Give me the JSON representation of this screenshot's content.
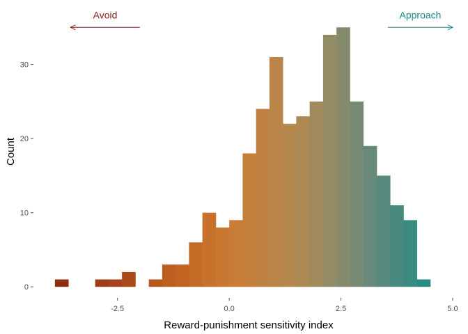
{
  "chart_data": {
    "type": "bar",
    "subtype": "histogram",
    "xlabel": "Reward-punishment sensitivity index",
    "ylabel": "Count",
    "xlim": [
      -4.35,
      5.0
    ],
    "ylim": [
      -1.2,
      37.0
    ],
    "x_ticks": [
      {
        "value": -2.5,
        "label": "-2.5"
      },
      {
        "value": 0.0,
        "label": "0.0"
      },
      {
        "value": 2.5,
        "label": "2.5"
      },
      {
        "value": 5.0,
        "label": "5.0"
      }
    ],
    "y_ticks": [
      {
        "value": 0,
        "label": "0"
      },
      {
        "value": 10,
        "label": "10"
      },
      {
        "value": 20,
        "label": "20"
      },
      {
        "value": 30,
        "label": "30"
      }
    ],
    "bin_width": 0.3,
    "bins": [
      {
        "start": -3.9,
        "count": 1
      },
      {
        "start": -3.0,
        "count": 1
      },
      {
        "start": -2.7,
        "count": 1
      },
      {
        "start": -2.4,
        "count": 2
      },
      {
        "start": -1.8,
        "count": 1
      },
      {
        "start": -1.5,
        "count": 3
      },
      {
        "start": -1.2,
        "count": 3
      },
      {
        "start": -0.9,
        "count": 6
      },
      {
        "start": -0.6,
        "count": 10
      },
      {
        "start": -0.3,
        "count": 8
      },
      {
        "start": 0.0,
        "count": 9
      },
      {
        "start": 0.3,
        "count": 18
      },
      {
        "start": 0.6,
        "count": 24
      },
      {
        "start": 0.9,
        "count": 31
      },
      {
        "start": 1.2,
        "count": 22
      },
      {
        "start": 1.5,
        "count": 23
      },
      {
        "start": 1.8,
        "count": 25
      },
      {
        "start": 2.1,
        "count": 34
      },
      {
        "start": 2.4,
        "count": 35
      },
      {
        "start": 2.7,
        "count": 25
      },
      {
        "start": 3.0,
        "count": 19
      },
      {
        "start": 3.3,
        "count": 15
      },
      {
        "start": 3.6,
        "count": 11
      },
      {
        "start": 3.9,
        "count": 9
      },
      {
        "start": 4.2,
        "count": 1
      }
    ],
    "color_gradient": [
      {
        "x": -3.9,
        "color": "#8b2a0c"
      },
      {
        "x": -2.4,
        "color": "#a8451a"
      },
      {
        "x": -1.2,
        "color": "#c0611f"
      },
      {
        "x": 0.0,
        "color": "#cb7a35"
      },
      {
        "x": 1.5,
        "color": "#b38950"
      },
      {
        "x": 2.4,
        "color": "#8d8a6a"
      },
      {
        "x": 3.3,
        "color": "#5f8a7d"
      },
      {
        "x": 4.35,
        "color": "#2b8a83"
      }
    ],
    "grid": false,
    "annotations": [
      {
        "label": "Avoid",
        "color": "#8b1a1a",
        "arrow": "left",
        "x_start": -2.0,
        "x_end": -3.55,
        "y": 35
      },
      {
        "label": "Approach",
        "color": "#1a8a8a",
        "arrow": "right",
        "x_start": 3.55,
        "x_end": 5.0,
        "y": 35
      }
    ]
  }
}
